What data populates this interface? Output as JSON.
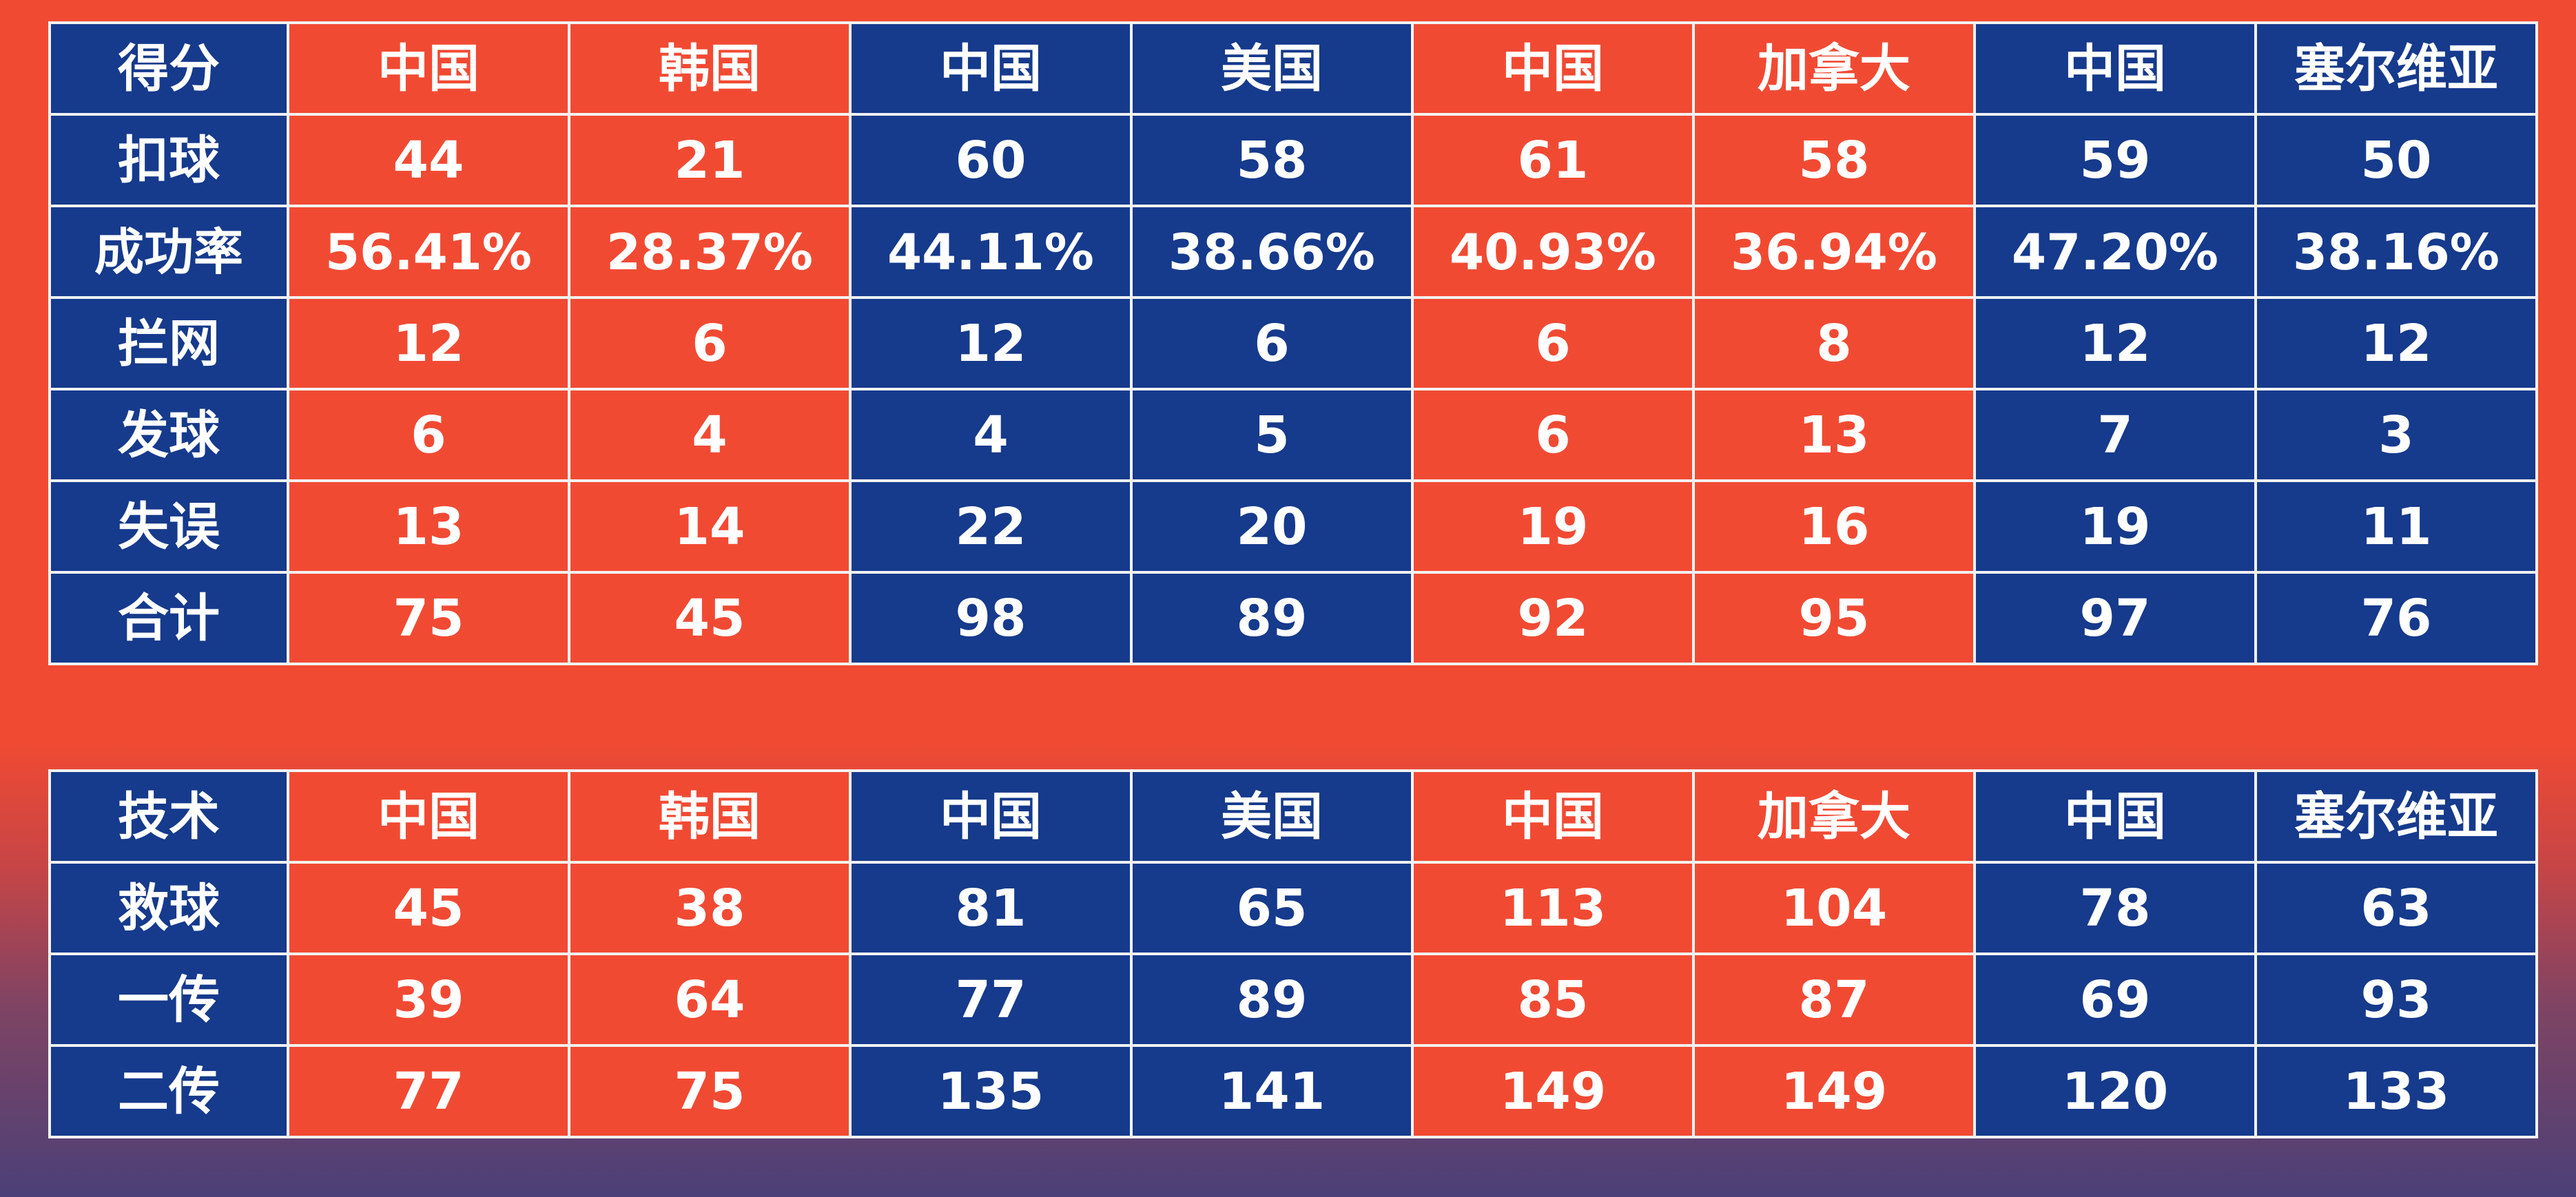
{
  "colors": {
    "red": "#f14a33",
    "blue": "#163a8c",
    "grid_line": "#f2f2f2",
    "text": "#ffffff"
  },
  "column_colors": [
    "red",
    "red",
    "blue",
    "blue",
    "red",
    "red",
    "blue",
    "blue"
  ],
  "scoring_table": {
    "corner_label": "得分",
    "countries": [
      "中国",
      "韩国",
      "中国",
      "美国",
      "中国",
      "加拿大",
      "中国",
      "塞尔维亚"
    ],
    "rows": [
      {
        "label": "扣球",
        "values": [
          "44",
          "21",
          "60",
          "58",
          "61",
          "58",
          "59",
          "50"
        ]
      },
      {
        "label": "成功率",
        "values": [
          "56.41%",
          "28.37%",
          "44.11%",
          "38.66%",
          "40.93%",
          "36.94%",
          "47.20%",
          "38.16%"
        ]
      },
      {
        "label": "拦网",
        "values": [
          "12",
          "6",
          "12",
          "6",
          "6",
          "8",
          "12",
          "12"
        ]
      },
      {
        "label": "发球",
        "values": [
          "6",
          "4",
          "4",
          "5",
          "6",
          "13",
          "7",
          "3"
        ]
      },
      {
        "label": "失误",
        "values": [
          "13",
          "14",
          "22",
          "20",
          "19",
          "16",
          "19",
          "11"
        ]
      },
      {
        "label": "合计",
        "values": [
          "75",
          "45",
          "98",
          "89",
          "92",
          "95",
          "97",
          "76"
        ]
      }
    ]
  },
  "technique_table": {
    "corner_label": "技术",
    "countries": [
      "中国",
      "韩国",
      "中国",
      "美国",
      "中国",
      "加拿大",
      "中国",
      "塞尔维亚"
    ],
    "rows": [
      {
        "label": "救球",
        "values": [
          "45",
          "38",
          "81",
          "65",
          "113",
          "104",
          "78",
          "63"
        ]
      },
      {
        "label": "一传",
        "values": [
          "39",
          "64",
          "77",
          "89",
          "85",
          "87",
          "69",
          "93"
        ]
      },
      {
        "label": "二传",
        "values": [
          "77",
          "75",
          "135",
          "141",
          "149",
          "149",
          "120",
          "133"
        ]
      }
    ]
  }
}
